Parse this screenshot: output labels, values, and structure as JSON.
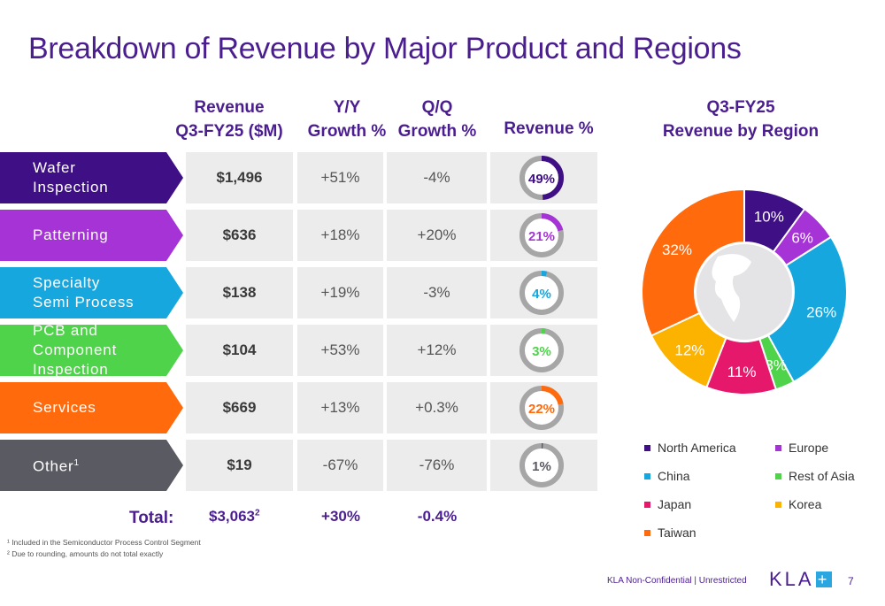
{
  "title": "Breakdown of Revenue by Major Product and Regions",
  "headers": {
    "revenue": [
      "Revenue",
      "Q3-FY25 ($M)"
    ],
    "yy": [
      "Y/Y",
      "Growth %"
    ],
    "qq": [
      "Q/Q",
      "Growth %"
    ],
    "revpct": "Revenue %"
  },
  "rows": [
    {
      "label": [
        "Wafer",
        "Inspection"
      ],
      "revenue": "$1,496",
      "yy": "+51%",
      "qq": "-4%",
      "pct": "49%",
      "share": 49,
      "color": "#3e0f85"
    },
    {
      "label": [
        "Patterning"
      ],
      "revenue": "$636",
      "yy": "+18%",
      "qq": "+20%",
      "pct": "21%",
      "share": 21,
      "color": "#a633d6"
    },
    {
      "label": [
        "Specialty",
        "Semi Process"
      ],
      "revenue": "$138",
      "yy": "+19%",
      "qq": "-3%",
      "pct": "4%",
      "share": 4,
      "color": "#16a7df"
    },
    {
      "label": [
        "PCB and Component",
        "Inspection"
      ],
      "revenue": "$104",
      "yy": "+53%",
      "qq": "+12%",
      "pct": "3%",
      "share": 3,
      "color": "#4fd34a"
    },
    {
      "label": [
        "Services"
      ],
      "revenue": "$669",
      "yy": "+13%",
      "qq": "+0.3%",
      "pct": "22%",
      "share": 22,
      "color": "#ff6a0d"
    },
    {
      "label": [
        "Other"
      ],
      "label_sup": "1",
      "revenue": "$19",
      "yy": "-67%",
      "qq": "-76%",
      "pct": "1%",
      "share": 1,
      "color": "#5a5a62"
    }
  ],
  "total": {
    "label": "Total:",
    "revenue": "$3,063",
    "revenue_sup": "2",
    "yy": "+30%",
    "qq": "-0.4%"
  },
  "footnotes": [
    "¹ Included in the Semiconductor Process Control Segment",
    "² Due to rounding, amounts do not total exactly"
  ],
  "donut_track_color": "#a6a6a6",
  "chart_data": {
    "type": "pie",
    "title": "Q3-FY25 Revenue by Region",
    "title_lines": [
      "Q3-FY25",
      "Revenue by Region"
    ],
    "categories": [
      "North America",
      "Europe",
      "China",
      "Rest of Asia",
      "Japan",
      "Korea",
      "Taiwan"
    ],
    "values": [
      10,
      6,
      26,
      3,
      11,
      12,
      32
    ],
    "labels": [
      "10%",
      "6%",
      "26%",
      "3%",
      "11%",
      "12%",
      "32%"
    ],
    "colors": [
      "#3e0f85",
      "#a633d6",
      "#16a7df",
      "#4fd34a",
      "#e6186b",
      "#fbb300",
      "#ff6a0d"
    ],
    "legend_position": "bottom"
  },
  "footer": {
    "confidential": "KLA Non-Confidential | Unrestricted",
    "logo": "KLA",
    "page": "7"
  }
}
